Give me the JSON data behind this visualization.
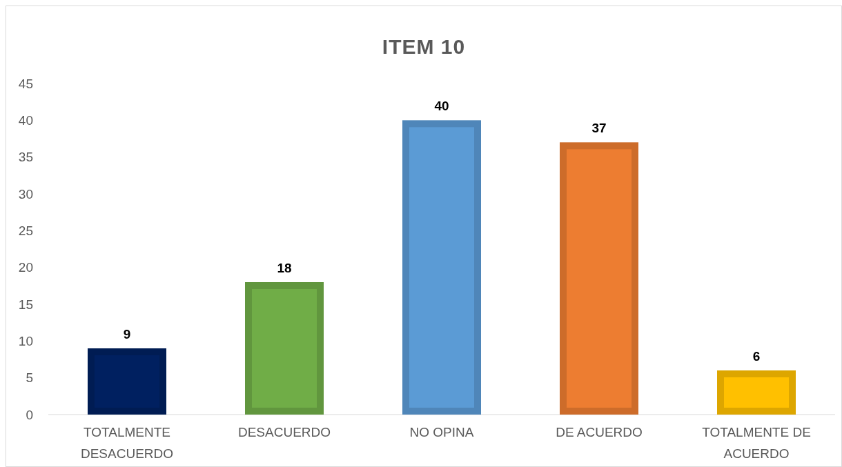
{
  "chart_data": {
    "type": "bar",
    "title": "ITEM 10",
    "categories": [
      "TOTALMENTE DESACUERDO",
      "DESACUERDO",
      "NO OPINA",
      "DE ACUERDO",
      "TOTALMENTE DE ACUERDO"
    ],
    "values": [
      9,
      18,
      40,
      37,
      6
    ],
    "colors": [
      "#002060",
      "#70ad47",
      "#5b9bd5",
      "#ed7d31",
      "#ffc000"
    ],
    "ylim": [
      0,
      45
    ],
    "yticks": [
      0,
      5,
      10,
      15,
      20,
      25,
      30,
      35,
      40,
      45
    ],
    "grid": false,
    "data_labels": true
  }
}
